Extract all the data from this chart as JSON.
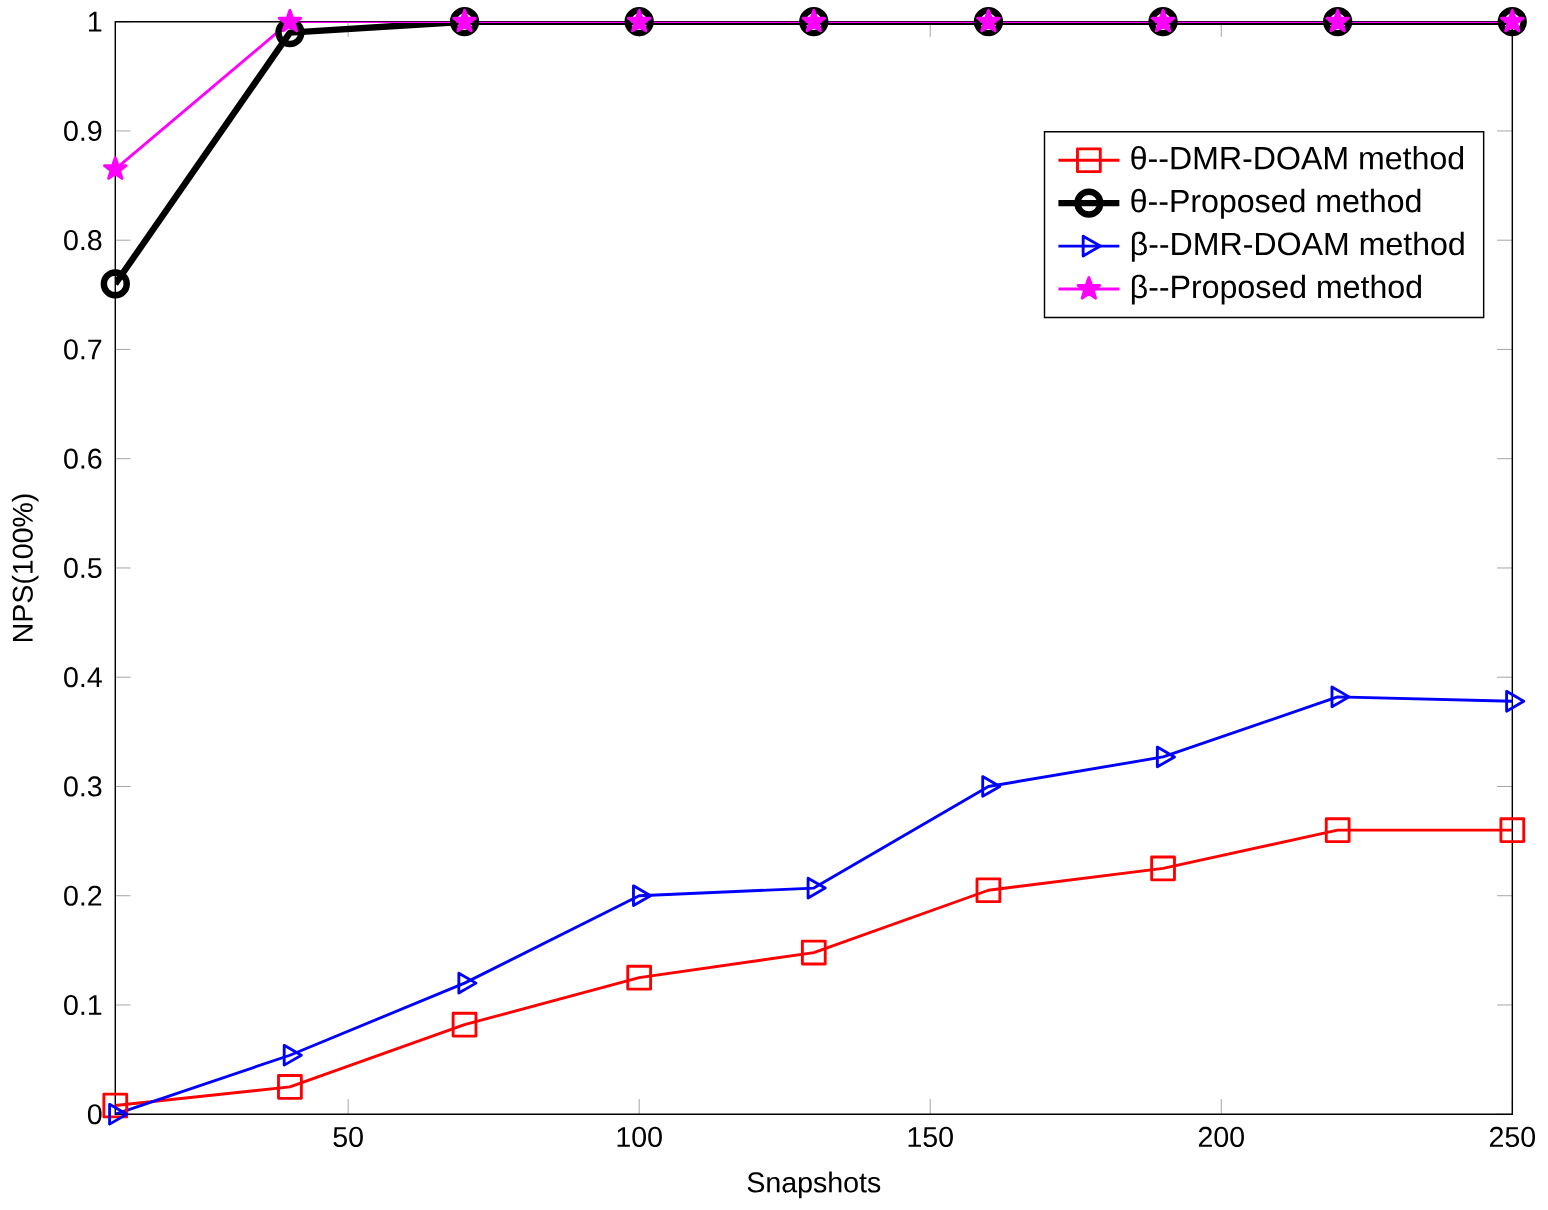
{
  "chart_data": {
    "type": "line",
    "xlabel": "Snapshots",
    "ylabel": "NPS(100%)",
    "x": [
      10,
      40,
      70,
      100,
      130,
      160,
      190,
      220,
      250
    ],
    "series": [
      {
        "name": "θ--DMR-DOAM method",
        "color": "#ff0000",
        "marker": "square",
        "values": [
          0.008,
          0.025,
          0.082,
          0.125,
          0.148,
          0.205,
          0.225,
          0.26,
          0.26
        ]
      },
      {
        "name": "θ--Proposed method",
        "color": "#000000",
        "marker": "circle",
        "values": [
          0.76,
          0.99,
          1,
          1,
          1,
          1,
          1,
          1,
          1
        ]
      },
      {
        "name": "β--DMR-DOAM method",
        "color": "#0000ff",
        "marker": "triangle",
        "values": [
          0.0,
          0.054,
          0.12,
          0.2,
          0.207,
          0.3,
          0.327,
          0.382,
          0.378
        ]
      },
      {
        "name": "β--Proposed method",
        "color": "#ff00ff",
        "marker": "star",
        "values": [
          0.865,
          1,
          1,
          1,
          1,
          1,
          1,
          1,
          1
        ]
      }
    ],
    "xlim": [
      10,
      250
    ],
    "ylim": [
      0,
      1
    ],
    "xticks": [
      50,
      100,
      150,
      200,
      250
    ],
    "yticks": [
      0,
      0.1,
      0.2,
      0.3,
      0.4,
      0.5,
      0.6,
      0.7,
      0.8,
      0.9,
      1
    ],
    "legend": "top right",
    "line_style": "solid",
    "grid": false
  }
}
